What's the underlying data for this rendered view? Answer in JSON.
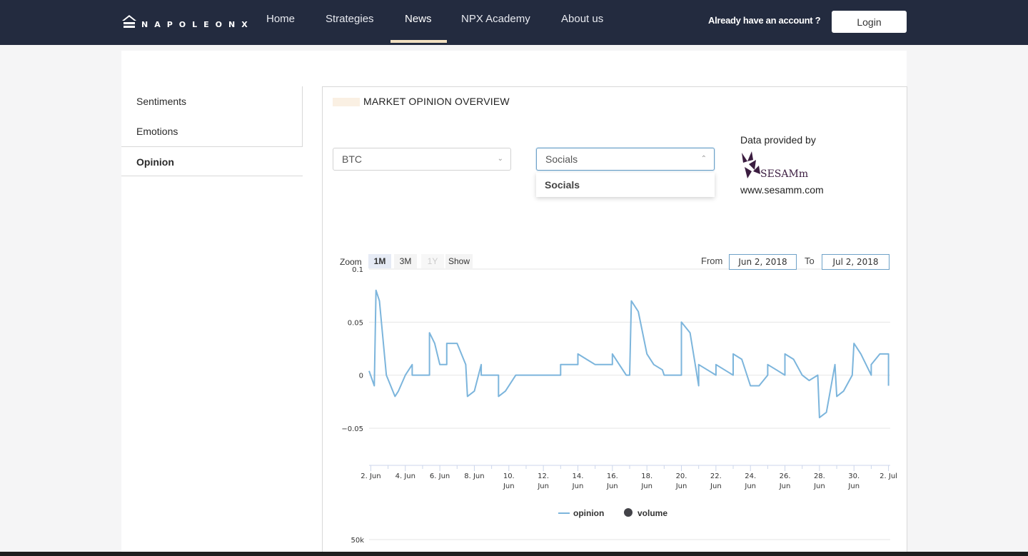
{
  "nav": {
    "logo_text": "NAPOLEONX",
    "items": [
      {
        "label": "Home",
        "active": false
      },
      {
        "label": "Strategies",
        "active": false
      },
      {
        "label": "News",
        "active": true
      },
      {
        "label": "NPX Academy",
        "active": false
      },
      {
        "label": "About us",
        "active": false
      }
    ],
    "account_prompt": "Already have an account ?",
    "login_label": "Login"
  },
  "sidebar": {
    "items": [
      {
        "label": "Sentiments",
        "active": false
      },
      {
        "label": "Emotions",
        "active": false
      },
      {
        "label": "Opinion",
        "active": true
      }
    ]
  },
  "main": {
    "title": "MARKET OPINION OVERVIEW",
    "asset_select": {
      "value": "BTC",
      "icon": "chevron-down-icon"
    },
    "source_select": {
      "value": "Socials",
      "icon": "chevron-up-icon",
      "open": true
    },
    "source_options": [
      "Socials"
    ],
    "provider": {
      "label": "Data provided by",
      "logo_text": "SESAMm",
      "url": "www.sesamm.com"
    }
  },
  "range_selector": {
    "zoom_label": "Zoom",
    "buttons": [
      {
        "label": "1M",
        "selected": true,
        "disabled": false
      },
      {
        "label": "3M",
        "selected": false,
        "disabled": false
      },
      {
        "label": "1Y",
        "selected": false,
        "disabled": true
      },
      {
        "label": "Show",
        "selected": false,
        "disabled": false
      }
    ],
    "from_label": "From",
    "from_value": "Jun 2, 2018",
    "to_label": "To",
    "to_value": "Jul 2, 2018"
  },
  "colors": {
    "navbar": "#232b3f",
    "nav_underline": "#f1dfc0",
    "series_opinion": "#7cb5dc",
    "series_volume": "#434348"
  },
  "chart_data": {
    "type": "line",
    "title": "",
    "xlabel": "",
    "ylabel": "",
    "ylim": [
      -0.085,
      0.1
    ],
    "y_ticks": [
      0.1,
      0.05,
      0,
      -0.05
    ],
    "y_tick_labels": [
      "0.1",
      "0.05",
      "0",
      "−0.05"
    ],
    "x_tick_labels": [
      [
        "2. Jun"
      ],
      [
        "4. Jun"
      ],
      [
        "6. Jun"
      ],
      [
        "8. Jun"
      ],
      [
        "10.",
        "Jun"
      ],
      [
        "12.",
        "Jun"
      ],
      [
        "14.",
        "Jun"
      ],
      [
        "16.",
        "Jun"
      ],
      [
        "18.",
        "Jun"
      ],
      [
        "20.",
        "Jun"
      ],
      [
        "22.",
        "Jun"
      ],
      [
        "24.",
        "Jun"
      ],
      [
        "26.",
        "Jun"
      ],
      [
        "28.",
        "Jun"
      ],
      [
        "30.",
        "Jun"
      ],
      [
        "2. Jul"
      ]
    ],
    "x_range_days": [
      1.9,
      32.1
    ],
    "legend": [
      "opinion",
      "volume"
    ],
    "volume_axis_label": "50k",
    "series": [
      {
        "name": "opinion",
        "x": [
          1.9,
          2.2,
          2.3,
          2.5,
          2.9,
          3.4,
          3.6,
          4.0,
          4.4,
          4.4,
          5.4,
          5.4,
          5.7,
          6.0,
          6.4,
          6.4,
          7.0,
          7.5,
          7.6,
          8.0,
          8.4,
          8.4,
          9.0,
          9.4,
          9.4,
          9.8,
          10.4,
          10.4,
          11.4,
          12.4,
          13.0,
          13.0,
          14.0,
          14.0,
          14.5,
          15.0,
          15.4,
          16.0,
          16.0,
          16.4,
          16.8,
          17.0,
          17.1,
          17.5,
          18.0,
          18.4,
          18.9,
          19.0,
          19.4,
          20.0,
          20.0,
          20.5,
          21.0,
          21.0,
          21.5,
          22.0,
          22.0,
          22.5,
          23.0,
          23.0,
          23.5,
          24.0,
          24.0,
          24.5,
          25.0,
          25.0,
          25.5,
          26.0,
          26.0,
          26.5,
          27.0,
          27.4,
          27.9,
          28.0,
          28.4,
          28.9,
          29.0,
          29.4,
          29.9,
          30.0,
          30.4,
          31.0,
          31.0,
          31.5,
          32.0,
          32.0
        ],
        "y": [
          0.004,
          -0.01,
          0.08,
          0.07,
          0.0,
          -0.02,
          -0.015,
          0.0,
          0.01,
          0.0,
          0.0,
          0.04,
          0.03,
          0.01,
          0.01,
          0.03,
          0.03,
          0.01,
          -0.02,
          -0.015,
          0.01,
          0.0,
          0.0,
          0.0,
          -0.02,
          -0.015,
          0.0,
          0.0,
          0.0,
          0.0,
          0.0,
          0.01,
          0.01,
          0.02,
          0.015,
          0.01,
          0.01,
          0.01,
          0.02,
          0.01,
          0.0,
          0.0,
          0.07,
          0.06,
          0.02,
          0.01,
          0.005,
          0.0,
          0.0,
          0.0,
          0.05,
          0.04,
          -0.01,
          0.01,
          0.005,
          0.0,
          0.01,
          0.005,
          0.0,
          0.02,
          0.015,
          -0.01,
          -0.01,
          -0.01,
          0.0,
          0.01,
          0.005,
          0.0,
          0.02,
          0.015,
          0.0,
          -0.005,
          0.0,
          -0.04,
          -0.035,
          0.01,
          -0.02,
          -0.015,
          0.0,
          0.03,
          0.02,
          0.0,
          0.01,
          0.02,
          0.02,
          -0.01
        ]
      },
      {
        "name": "volume",
        "x": [],
        "y": []
      }
    ]
  }
}
